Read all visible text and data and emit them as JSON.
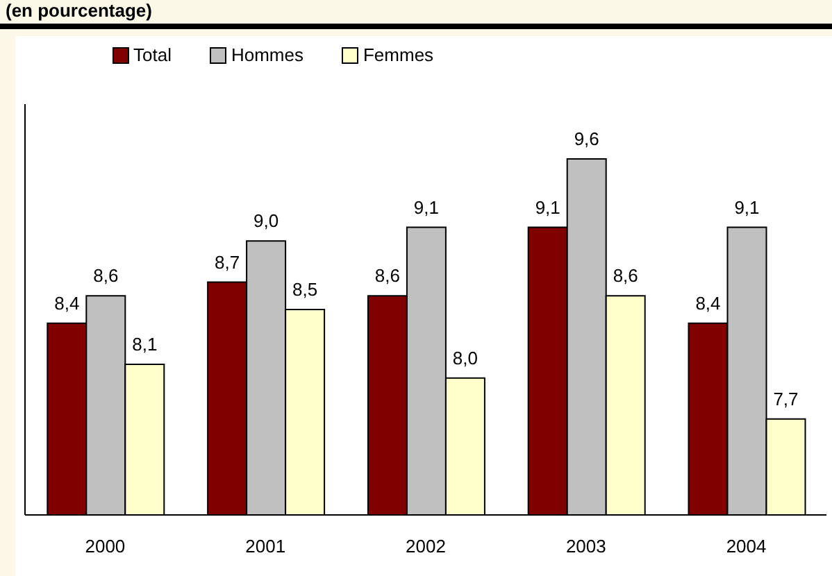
{
  "chart_data": {
    "type": "bar",
    "subtitle": "(en pourcentage)",
    "categories": [
      "2000",
      "2001",
      "2002",
      "2003",
      "2004"
    ],
    "series": [
      {
        "name": "Total",
        "color": "#800000",
        "values": [
          8.4,
          8.7,
          8.6,
          9.1,
          8.4
        ],
        "value_labels": [
          "8,4",
          "8,7",
          "8,6",
          "9,1",
          "8,4"
        ]
      },
      {
        "name": "Hommes",
        "color": "#c0c0c0",
        "values": [
          8.6,
          9.0,
          9.1,
          9.6,
          9.1
        ],
        "value_labels": [
          "8,6",
          "9,0",
          "9,1",
          "9,6",
          "9,1"
        ]
      },
      {
        "name": "Femmes",
        "color": "#ffffcc",
        "values": [
          8.1,
          8.5,
          8.0,
          8.6,
          7.7
        ],
        "value_labels": [
          "8,1",
          "8,5",
          "8,0",
          "8,6",
          "7,7"
        ]
      }
    ],
    "ylim": [
      7,
      10
    ],
    "legend": "top left",
    "grid": false
  }
}
